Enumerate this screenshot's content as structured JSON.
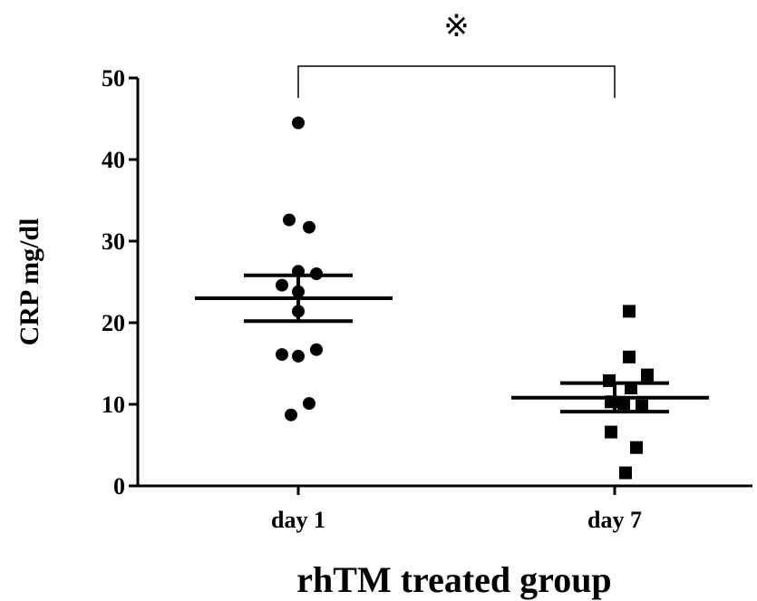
{
  "chart_data": {
    "type": "scatter",
    "title": "",
    "xlabel": "rhTM treated group",
    "ylabel": "CRP mg/dl",
    "ylim": [
      0,
      50
    ],
    "yticks": [
      0,
      10,
      20,
      30,
      40,
      50
    ],
    "categories": [
      "day 1",
      "day 7"
    ],
    "grid": false,
    "significance": {
      "between": [
        "day 1",
        "day 7"
      ],
      "symbol": "※"
    },
    "series": [
      {
        "category": "day 1",
        "marker": "circle",
        "points": [
          {
            "offset": 0,
            "y": 44.5
          },
          {
            "offset": -10,
            "y": 32.6
          },
          {
            "offset": 12,
            "y": 31.7
          },
          {
            "offset": 0,
            "y": 26.3
          },
          {
            "offset": 20,
            "y": 26.0
          },
          {
            "offset": -18,
            "y": 24.6
          },
          {
            "offset": 0,
            "y": 23.8
          },
          {
            "offset": 0,
            "y": 21.4
          },
          {
            "offset": 20,
            "y": 16.7
          },
          {
            "offset": -18,
            "y": 16.1
          },
          {
            "offset": 0,
            "y": 15.9
          },
          {
            "offset": 12,
            "y": 10.1
          },
          {
            "offset": -8,
            "y": 8.7
          }
        ],
        "mean": 23.0,
        "sem_upper": 25.8,
        "sem_lower": 20.2
      },
      {
        "category": "day 7",
        "marker": "square",
        "points": [
          {
            "offset": 16,
            "y": 21.4
          },
          {
            "offset": 16,
            "y": 15.8
          },
          {
            "offset": 36,
            "y": 13.6
          },
          {
            "offset": -6,
            "y": 12.9
          },
          {
            "offset": 18,
            "y": 12.0
          },
          {
            "offset": -4,
            "y": 10.3
          },
          {
            "offset": 10,
            "y": 10.1
          },
          {
            "offset": 30,
            "y": 9.8
          },
          {
            "offset": -4,
            "y": 6.6
          },
          {
            "offset": 24,
            "y": 4.7
          },
          {
            "offset": 12,
            "y": 1.6
          }
        ],
        "mean": 10.8,
        "sem_upper": 12.6,
        "sem_lower": 9.1
      }
    ]
  }
}
